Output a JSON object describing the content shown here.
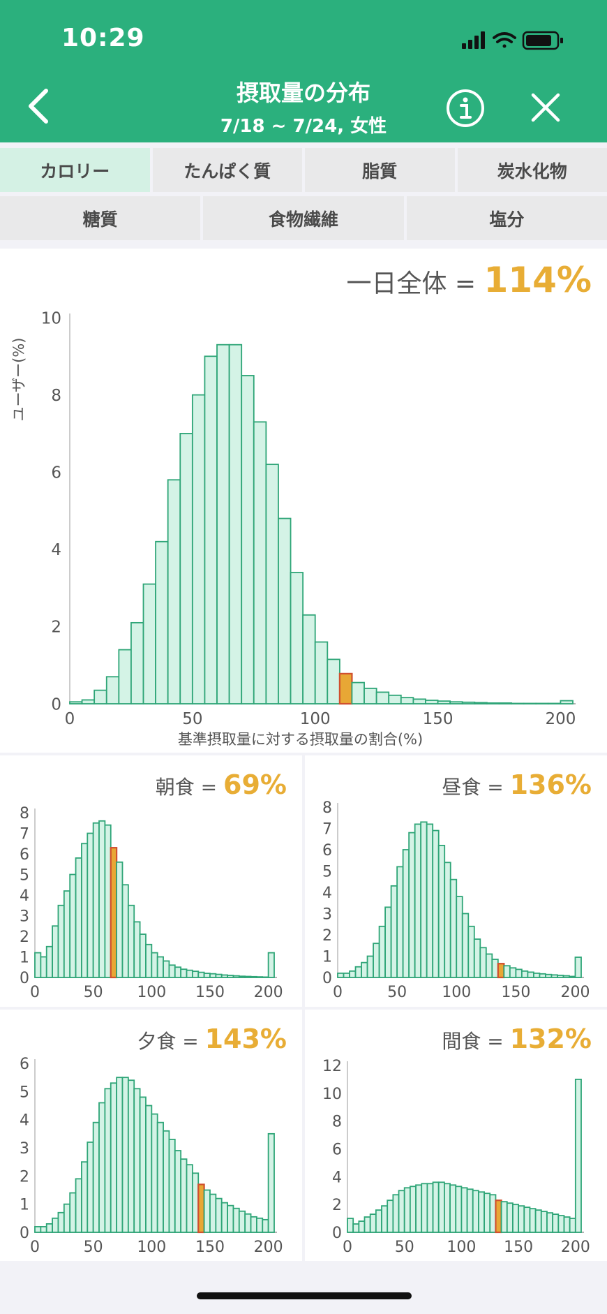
{
  "status": {
    "time": "10:29"
  },
  "header": {
    "title": "摂取量の分布",
    "subtitle": "7/18 ~ 7/24, 女性"
  },
  "tabs_row1": [
    "カロリー",
    "たんぱく質",
    "脂質",
    "炭水化物"
  ],
  "tabs_row2": [
    "糖質",
    "食物繊維",
    "塩分"
  ],
  "active_tab": "カロリー",
  "colors": {
    "header": "#2bb07d",
    "bar_fill": "#d4f3e6",
    "bar_stroke": "#2ea577",
    "highlight_fill": "#e8a735",
    "highlight_stroke": "#d0502e",
    "value": "#e8ad35"
  },
  "charts": {
    "total": {
      "label": "一日全体 = ",
      "value": "114%"
    },
    "breakfast": {
      "label": "朝食 = ",
      "value": "69%"
    },
    "lunch": {
      "label": "昼食 = ",
      "value": "136%"
    },
    "dinner": {
      "label": "夕食 = ",
      "value": "143%"
    },
    "snack": {
      "label": "間食 = ",
      "value": "132%"
    }
  },
  "chart_data": [
    {
      "type": "bar",
      "name": "total",
      "ylabel": "ユーザー(%)",
      "xlabel": "基準摂取量に対する摂取量の割合(%)",
      "ylim": [
        0,
        10
      ],
      "yticks": [
        0,
        2,
        4,
        6,
        8,
        10
      ],
      "xticks": [
        0,
        50,
        100,
        150,
        200
      ],
      "bin_width": 5,
      "highlight_bin": 22,
      "values": [
        0.05,
        0.1,
        0.35,
        0.7,
        1.4,
        2.1,
        3.1,
        4.2,
        5.8,
        7.0,
        8.0,
        9.0,
        9.3,
        9.3,
        8.5,
        7.3,
        6.2,
        4.8,
        3.4,
        2.3,
        1.6,
        1.15,
        0.78,
        0.55,
        0.4,
        0.3,
        0.22,
        0.16,
        0.12,
        0.09,
        0.07,
        0.05,
        0.04,
        0.03,
        0.02,
        0.02,
        0.01,
        0.01,
        0.01,
        0.01,
        0.08
      ]
    },
    {
      "type": "bar",
      "name": "breakfast",
      "ylim": [
        0,
        8
      ],
      "yticks": [
        0,
        1,
        2,
        3,
        4,
        5,
        6,
        7,
        8
      ],
      "xticks": [
        0,
        50,
        100,
        150,
        200
      ],
      "bin_width": 5,
      "highlight_bin": 13,
      "values": [
        1.2,
        1.0,
        1.5,
        2.5,
        3.5,
        4.2,
        5.0,
        5.8,
        6.5,
        7.0,
        7.5,
        7.6,
        7.4,
        6.3,
        5.6,
        4.5,
        3.5,
        2.7,
        2.1,
        1.6,
        1.2,
        1.0,
        0.8,
        0.6,
        0.5,
        0.4,
        0.35,
        0.3,
        0.25,
        0.2,
        0.18,
        0.15,
        0.12,
        0.1,
        0.08,
        0.06,
        0.05,
        0.04,
        0.03,
        0.02,
        1.2
      ]
    },
    {
      "type": "bar",
      "name": "lunch",
      "ylim": [
        0,
        8
      ],
      "yticks": [
        0,
        1,
        2,
        3,
        4,
        5,
        6,
        7,
        8
      ],
      "xticks": [
        0,
        50,
        100,
        150,
        200
      ],
      "bin_width": 5,
      "highlight_bin": 27,
      "values": [
        0.2,
        0.2,
        0.3,
        0.5,
        0.7,
        1.0,
        1.6,
        2.4,
        3.3,
        4.3,
        5.2,
        6.0,
        6.8,
        7.2,
        7.3,
        7.2,
        6.9,
        6.2,
        5.4,
        4.6,
        3.8,
        3.0,
        2.4,
        1.8,
        1.4,
        1.1,
        0.85,
        0.65,
        0.55,
        0.45,
        0.38,
        0.3,
        0.25,
        0.2,
        0.17,
        0.14,
        0.12,
        0.1,
        0.08,
        0.05,
        0.95
      ]
    },
    {
      "type": "bar",
      "name": "dinner",
      "ylim": [
        0,
        6
      ],
      "yticks": [
        0,
        1,
        2,
        3,
        4,
        5,
        6
      ],
      "xticks": [
        0,
        50,
        100,
        150,
        200
      ],
      "bin_width": 5,
      "highlight_bin": 28,
      "values": [
        0.2,
        0.2,
        0.3,
        0.5,
        0.7,
        1.0,
        1.4,
        1.9,
        2.5,
        3.2,
        3.9,
        4.6,
        5.1,
        5.3,
        5.5,
        5.5,
        5.4,
        5.1,
        4.8,
        4.5,
        4.2,
        3.9,
        3.6,
        3.3,
        2.9,
        2.6,
        2.4,
        2.1,
        1.7,
        1.5,
        1.35,
        1.2,
        1.05,
        0.95,
        0.85,
        0.75,
        0.65,
        0.55,
        0.5,
        0.45,
        3.5
      ]
    },
    {
      "type": "bar",
      "name": "snack",
      "ylim": [
        0,
        12
      ],
      "yticks": [
        0,
        2,
        4,
        6,
        8,
        10,
        12
      ],
      "xticks": [
        0,
        50,
        100,
        150,
        200
      ],
      "bin_width": 5,
      "highlight_bin": 26,
      "values": [
        1.0,
        0.6,
        0.8,
        1.1,
        1.3,
        1.6,
        1.9,
        2.3,
        2.7,
        3.0,
        3.2,
        3.3,
        3.4,
        3.5,
        3.5,
        3.6,
        3.6,
        3.5,
        3.4,
        3.3,
        3.2,
        3.1,
        3.0,
        2.9,
        2.8,
        2.7,
        2.3,
        2.2,
        2.1,
        2.0,
        1.9,
        1.8,
        1.7,
        1.6,
        1.5,
        1.4,
        1.3,
        1.2,
        1.1,
        1.0,
        11.0
      ]
    }
  ]
}
